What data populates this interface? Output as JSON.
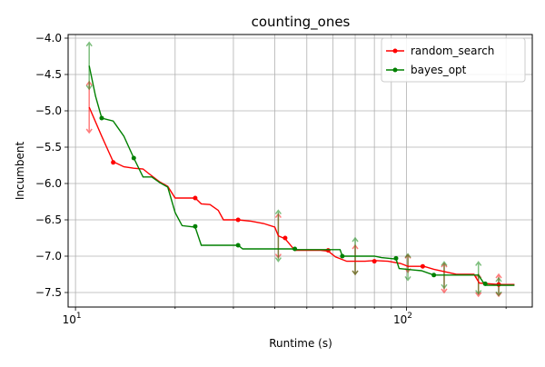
{
  "chart_data": {
    "type": "line",
    "title": "counting_ones",
    "xlabel": "Runtime (s)",
    "ylabel": "Incumbent",
    "xscale": "log",
    "xlim": [
      9.5,
      240
    ],
    "ylim": [
      -7.7,
      -3.95
    ],
    "xticks": [
      {
        "value": 10,
        "base": "10",
        "exp": "1"
      },
      {
        "value": 100,
        "base": "10",
        "exp": "2"
      }
    ],
    "yticks": [
      {
        "value": -4.0,
        "label": "−4.0"
      },
      {
        "value": -4.5,
        "label": "−4.5"
      },
      {
        "value": -5.0,
        "label": "−5.0"
      },
      {
        "value": -5.5,
        "label": "−5.5"
      },
      {
        "value": -6.0,
        "label": "−6.0"
      },
      {
        "value": -6.5,
        "label": "−6.5"
      },
      {
        "value": -7.0,
        "label": "−7.0"
      },
      {
        "value": -7.5,
        "label": "−7.5"
      }
    ],
    "grid": true,
    "legend_position": "top-right",
    "series": [
      {
        "name": "random_search",
        "color": "#ff0000",
        "line": [
          [
            11,
            -4.95
          ],
          [
            12,
            -5.35
          ],
          [
            13,
            -5.7
          ],
          [
            14,
            -5.77
          ],
          [
            15,
            -5.79
          ],
          [
            16,
            -5.8
          ],
          [
            16.5,
            -5.85
          ],
          [
            18,
            -5.98
          ],
          [
            19,
            -6.04
          ],
          [
            20,
            -6.2
          ],
          [
            22,
            -6.2
          ],
          [
            23,
            -6.2
          ],
          [
            24,
            -6.28
          ],
          [
            25.5,
            -6.29
          ],
          [
            27,
            -6.37
          ],
          [
            28,
            -6.5
          ],
          [
            31,
            -6.5
          ],
          [
            34,
            -6.52
          ],
          [
            37,
            -6.55
          ],
          [
            40,
            -6.6
          ],
          [
            41,
            -6.72
          ],
          [
            43,
            -6.76
          ],
          [
            46,
            -6.92
          ],
          [
            55,
            -6.92
          ],
          [
            58,
            -6.93
          ],
          [
            61,
            -7.01
          ],
          [
            66,
            -7.07
          ],
          [
            75,
            -7.07
          ],
          [
            80,
            -7.06
          ],
          [
            88,
            -7.07
          ],
          [
            96,
            -7.1
          ],
          [
            101,
            -7.14
          ],
          [
            113,
            -7.14
          ],
          [
            121,
            -7.18
          ],
          [
            142,
            -7.25
          ],
          [
            160,
            -7.25
          ],
          [
            166,
            -7.37
          ],
          [
            190,
            -7.39
          ],
          [
            212,
            -7.39
          ]
        ],
        "markers": [
          [
            13,
            -5.71
          ],
          [
            23,
            -6.2
          ],
          [
            31,
            -6.5
          ],
          [
            43,
            -6.75
          ],
          [
            58,
            -6.92
          ],
          [
            80,
            -7.07
          ],
          [
            112,
            -7.14
          ],
          [
            190,
            -7.39
          ]
        ],
        "errorbars": [
          [
            11,
            -4.95,
            0.35
          ],
          [
            41,
            -6.72,
            0.3
          ],
          [
            70,
            -7.05,
            0.2
          ],
          [
            101,
            -7.1,
            0.12
          ],
          [
            130,
            -7.3,
            0.2
          ],
          [
            165,
            -7.4,
            0.15
          ],
          [
            190,
            -7.4,
            0.15
          ]
        ]
      },
      {
        "name": "bayes_opt",
        "color": "#008000",
        "line": [
          [
            11,
            -4.38
          ],
          [
            11.5,
            -4.8
          ],
          [
            12,
            -5.1
          ],
          [
            13,
            -5.14
          ],
          [
            14,
            -5.35
          ],
          [
            15,
            -5.65
          ],
          [
            16,
            -5.91
          ],
          [
            17,
            -5.91
          ],
          [
            18,
            -5.99
          ],
          [
            19,
            -6.05
          ],
          [
            20,
            -6.4
          ],
          [
            21,
            -6.58
          ],
          [
            23,
            -6.6
          ],
          [
            24,
            -6.85
          ],
          [
            31,
            -6.85
          ],
          [
            32,
            -6.9
          ],
          [
            45,
            -6.9
          ],
          [
            46,
            -6.91
          ],
          [
            63,
            -6.91
          ],
          [
            64,
            -7.0
          ],
          [
            80,
            -7.0
          ],
          [
            84,
            -7.02
          ],
          [
            93,
            -7.04
          ],
          [
            95,
            -7.17
          ],
          [
            105,
            -7.19
          ],
          [
            111,
            -7.2
          ],
          [
            121,
            -7.26
          ],
          [
            165,
            -7.26
          ],
          [
            173,
            -7.4
          ],
          [
            212,
            -7.4
          ]
        ],
        "markers": [
          [
            12,
            -5.1
          ],
          [
            15,
            -5.65
          ],
          [
            23,
            -6.59
          ],
          [
            31,
            -6.85
          ],
          [
            46,
            -6.9
          ],
          [
            64,
            -7.0
          ],
          [
            93,
            -7.03
          ],
          [
            121,
            -7.26
          ],
          [
            173,
            -7.38
          ]
        ],
        "errorbars": [
          [
            11,
            -4.38,
            0.32
          ],
          [
            41,
            -6.72,
            0.35
          ],
          [
            70,
            -7.0,
            0.25
          ],
          [
            101,
            -7.15,
            0.18
          ],
          [
            130,
            -7.26,
            0.18
          ],
          [
            165,
            -7.3,
            0.22
          ],
          [
            190,
            -7.42,
            0.12
          ]
        ]
      }
    ]
  }
}
